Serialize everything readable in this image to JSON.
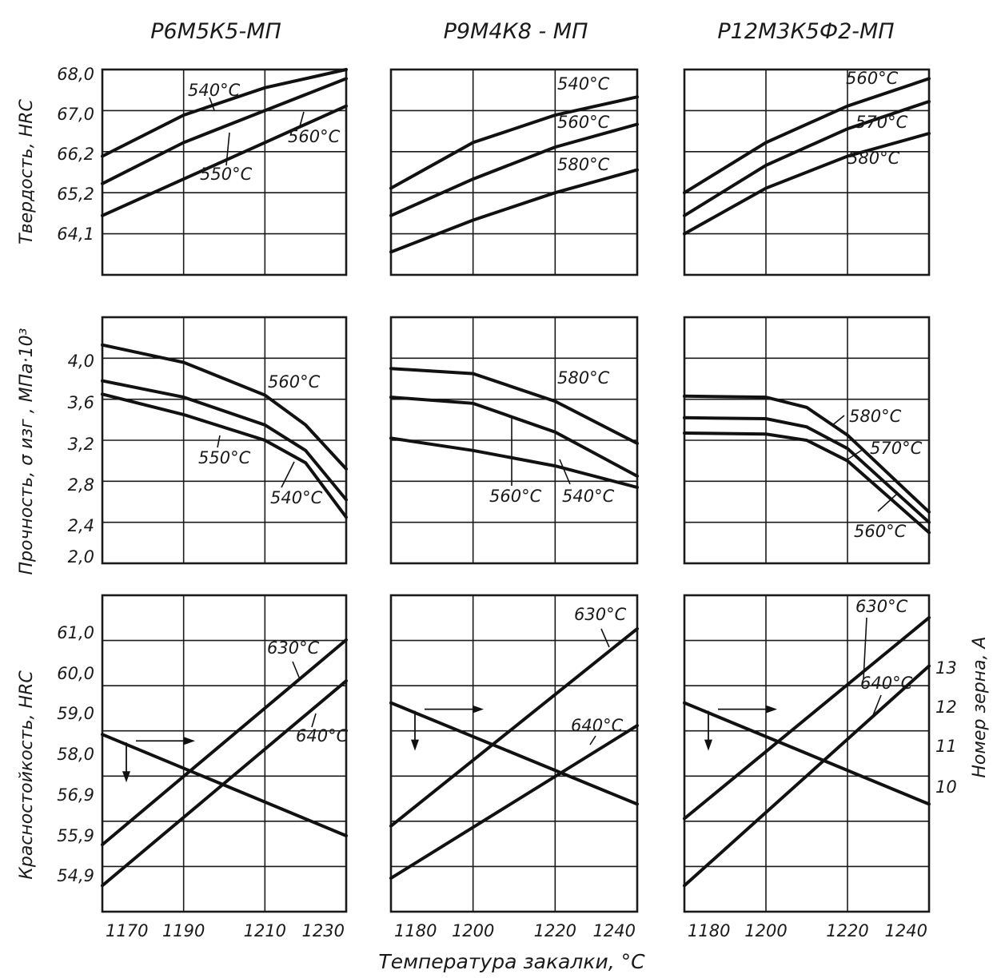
{
  "xlabel": "Температура закалки, °С",
  "row_ylabels": {
    "hardness": "Твердость, HRC",
    "strength": "Прочность, σ изг , МПа·10³",
    "redness": "Красностойкость, HRC"
  },
  "right_ylabel": "Номер зерна, А",
  "right_ticks": [
    "13",
    "12",
    "11",
    "10"
  ],
  "columns": [
    {
      "steel": "Р6М5К5-МП",
      "x_ticks": [
        "1170",
        "1190",
        "1210",
        "1230"
      ]
    },
    {
      "steel": "Р9М4К8 - МП",
      "x_ticks": [
        "1180",
        "1200",
        "1220",
        "1240"
      ]
    },
    {
      "steel": "Р12М3К5Ф2-МП",
      "x_ticks": [
        "1180",
        "1200",
        "1220",
        "1240"
      ]
    }
  ],
  "y_ticks": {
    "hardness": [
      "68,0",
      "67,0",
      "66,2",
      "65,2",
      "64,1"
    ],
    "strength": [
      "4,0",
      "3,6",
      "3,2",
      "2,8",
      "2,4",
      "2,0"
    ],
    "redness": [
      "61,0",
      "60,0",
      "59,0",
      "58,0",
      "56,9",
      "55,9",
      "54,9"
    ]
  },
  "chart_data": [
    {
      "type": "line",
      "steel": "Р6М5К5-МП",
      "ylabel": "Твердость, HRC",
      "x": [
        1170,
        1230
      ],
      "ylim": [
        63.5,
        68.0
      ],
      "series": [
        {
          "name": "540°С",
          "points": [
            [
              1170,
              66.1
            ],
            [
              1190,
              67.0
            ],
            [
              1210,
              67.6
            ],
            [
              1230,
              68.0
            ]
          ]
        },
        {
          "name": "550°С",
          "points": [
            [
              1170,
              65.5
            ],
            [
              1190,
              66.4
            ],
            [
              1210,
              67.1
            ],
            [
              1230,
              67.8
            ]
          ]
        },
        {
          "name": "560°С",
          "points": [
            [
              1170,
              64.8
            ],
            [
              1190,
              65.6
            ],
            [
              1210,
              66.4
            ],
            [
              1230,
              67.2
            ]
          ]
        }
      ]
    },
    {
      "type": "line",
      "steel": "Р9М4К8 - МП",
      "ylabel": "Твердость, HRC",
      "x": [
        1180,
        1240
      ],
      "ylim": [
        63.5,
        68.0
      ],
      "series": [
        {
          "name": "540°С",
          "points": [
            [
              1180,
              65.4
            ],
            [
              1200,
              66.4
            ],
            [
              1220,
              67.0
            ],
            [
              1240,
              67.4
            ]
          ]
        },
        {
          "name": "560°С",
          "points": [
            [
              1180,
              64.8
            ],
            [
              1200,
              65.6
            ],
            [
              1220,
              66.3
            ],
            [
              1240,
              66.8
            ]
          ]
        },
        {
          "name": "580°С",
          "points": [
            [
              1180,
              64.0
            ],
            [
              1200,
              64.7
            ],
            [
              1220,
              65.3
            ],
            [
              1240,
              65.8
            ]
          ]
        }
      ]
    },
    {
      "type": "line",
      "steel": "Р12М3К5Ф2-МП",
      "ylabel": "Твердость, HRC",
      "x": [
        1180,
        1240
      ],
      "ylim": [
        63.5,
        68.0
      ],
      "series": [
        {
          "name": "560°С",
          "points": [
            [
              1180,
              65.3
            ],
            [
              1200,
              66.4
            ],
            [
              1220,
              67.2
            ],
            [
              1240,
              67.8
            ]
          ]
        },
        {
          "name": "570°С",
          "points": [
            [
              1180,
              64.8
            ],
            [
              1200,
              65.9
            ],
            [
              1220,
              66.7
            ],
            [
              1240,
              67.3
            ]
          ]
        },
        {
          "name": "580°С",
          "points": [
            [
              1180,
              64.4
            ],
            [
              1200,
              65.4
            ],
            [
              1220,
              66.1
            ],
            [
              1240,
              66.6
            ]
          ]
        }
      ]
    },
    {
      "type": "line",
      "steel": "Р6М5К5-МП",
      "ylabel": "Прочность, σ изг , МПа·10³",
      "x": [
        1170,
        1230
      ],
      "ylim": [
        2.0,
        4.4
      ],
      "series": [
        {
          "name": "560°С",
          "points": [
            [
              1170,
              4.13
            ],
            [
              1190,
              3.96
            ],
            [
              1210,
              3.64
            ],
            [
              1220,
              3.35
            ],
            [
              1230,
              2.92
            ]
          ]
        },
        {
          "name": "550°С",
          "points": [
            [
              1170,
              3.78
            ],
            [
              1190,
              3.62
            ],
            [
              1210,
              3.35
            ],
            [
              1220,
              3.1
            ],
            [
              1230,
              2.62
            ]
          ]
        },
        {
          "name": "540°С",
          "points": [
            [
              1170,
              3.65
            ],
            [
              1190,
              3.45
            ],
            [
              1210,
              3.2
            ],
            [
              1220,
              2.98
            ],
            [
              1230,
              2.45
            ]
          ]
        }
      ]
    },
    {
      "type": "line",
      "steel": "Р9М4К8 - МП",
      "ylabel": "Прочность, σ изг , МПа·10³",
      "x": [
        1180,
        1240
      ],
      "ylim": [
        2.0,
        4.4
      ],
      "series": [
        {
          "name": "580°С",
          "points": [
            [
              1180,
              3.9
            ],
            [
              1200,
              3.85
            ],
            [
              1220,
              3.58
            ],
            [
              1240,
              3.17
            ]
          ]
        },
        {
          "name": "560°С",
          "points": [
            [
              1180,
              3.62
            ],
            [
              1200,
              3.56
            ],
            [
              1220,
              3.28
            ],
            [
              1240,
              2.85
            ]
          ]
        },
        {
          "name": "540°С",
          "points": [
            [
              1180,
              3.22
            ],
            [
              1200,
              3.1
            ],
            [
              1220,
              2.95
            ],
            [
              1240,
              2.74
            ]
          ]
        }
      ]
    },
    {
      "type": "line",
      "steel": "Р12М3К5Ф2-МП",
      "ylabel": "Прочность, σ изг , МПа·10³",
      "x": [
        1180,
        1240
      ],
      "ylim": [
        2.0,
        4.4
      ],
      "series": [
        {
          "name": "580°С",
          "points": [
            [
              1180,
              3.63
            ],
            [
              1200,
              3.62
            ],
            [
              1210,
              3.52
            ],
            [
              1220,
              3.25
            ],
            [
              1240,
              2.5
            ]
          ]
        },
        {
          "name": "570°С",
          "points": [
            [
              1180,
              3.42
            ],
            [
              1200,
              3.41
            ],
            [
              1210,
              3.33
            ],
            [
              1220,
              3.12
            ],
            [
              1240,
              2.4
            ]
          ]
        },
        {
          "name": "560°С",
          "points": [
            [
              1180,
              3.27
            ],
            [
              1200,
              3.26
            ],
            [
              1210,
              3.2
            ],
            [
              1220,
              3.0
            ],
            [
              1240,
              2.3
            ]
          ]
        }
      ]
    },
    {
      "type": "line",
      "steel": "Р6М5К5-МП",
      "ylabel": "Красностойкость, HRC",
      "x": [
        1170,
        1230
      ],
      "ylim": [
        53.5,
        62.0
      ],
      "series": [
        {
          "name": "630°С",
          "points": [
            [
              1170,
              55.3
            ],
            [
              1230,
              60.8
            ]
          ]
        },
        {
          "name": "640°С",
          "points": [
            [
              1170,
              54.2
            ],
            [
              1230,
              59.7
            ]
          ]
        }
      ],
      "grain_series": {
        "points": [
          [
            1170,
            11.8
          ],
          [
            1230,
            10.2
          ]
        ]
      }
    },
    {
      "type": "line",
      "steel": "Р9М4К8 - МП",
      "ylabel": "Красностойкость, HRC",
      "x": [
        1180,
        1240
      ],
      "ylim": [
        53.5,
        62.0
      ],
      "series": [
        {
          "name": "630°С",
          "points": [
            [
              1180,
              55.8
            ],
            [
              1240,
              61.1
            ]
          ]
        },
        {
          "name": "640°С",
          "points": [
            [
              1180,
              54.4
            ],
            [
              1240,
              58.5
            ]
          ]
        }
      ],
      "grain_series": {
        "points": [
          [
            1180,
            12.3
          ],
          [
            1240,
            10.7
          ]
        ]
      }
    },
    {
      "type": "line",
      "steel": "Р12М3К5Ф2-МП",
      "ylabel": "Красностойкость, HRC",
      "x": [
        1180,
        1240
      ],
      "ylim": [
        53.5,
        62.0
      ],
      "series": [
        {
          "name": "630°С",
          "points": [
            [
              1180,
              56.0
            ],
            [
              1240,
              61.4
            ]
          ]
        },
        {
          "name": "640°С",
          "points": [
            [
              1180,
              54.2
            ],
            [
              1240,
              60.1
            ]
          ]
        }
      ],
      "grain_series": {
        "points": [
          [
            1180,
            12.3
          ],
          [
            1240,
            10.7
          ]
        ]
      }
    }
  ]
}
